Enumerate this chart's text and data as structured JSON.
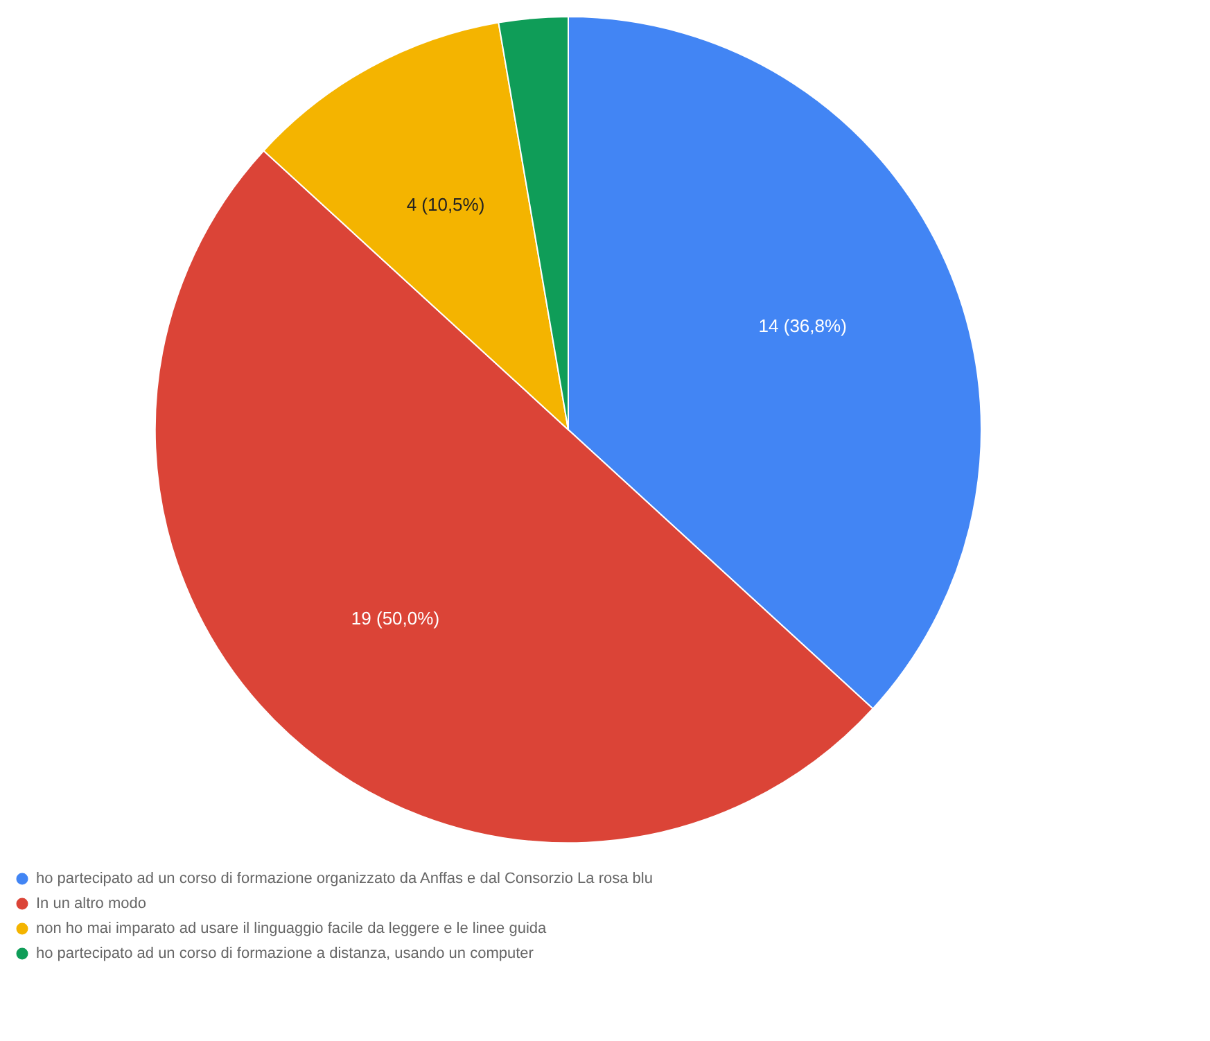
{
  "chart_data": {
    "type": "pie",
    "categories": [
      "ho partecipato ad un corso di formazione organizzato da Anffas e dal Consorzio La rosa blu",
      "In un altro modo",
      "non ho mai imparato ad usare il linguaggio facile da leggere e le linee guida",
      "ho partecipato ad un corso di formazione a distanza, usando un computer"
    ],
    "values": [
      36.8,
      50.0,
      10.5,
      2.7
    ],
    "colors": [
      "#4285f4",
      "#db4437",
      "#f4b400",
      "#0f9d58"
    ],
    "value_labels": [
      "14 (36,8%)",
      "19 (50,0%)",
      "4 (10,5%)",
      null
    ],
    "legend": "bottom"
  }
}
